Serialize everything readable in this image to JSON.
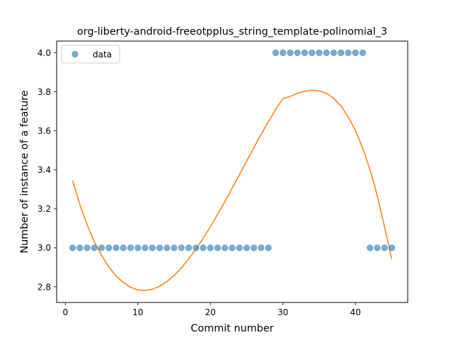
{
  "chart_data": {
    "type": "scatter",
    "title": "org-liberty-android-freeotpplus_string_template-polinomial_3",
    "xlabel": "Commit number",
    "ylabel": "Number of instance of a feature",
    "xlim": [
      -1.2,
      47.2
    ],
    "ylim": [
      2.72,
      4.06
    ],
    "xticks": [
      0,
      10,
      20,
      30,
      40
    ],
    "yticks": [
      2.8,
      3.0,
      3.2,
      3.4,
      3.6,
      3.8,
      4.0
    ],
    "grid": false,
    "legend_position": "top-left",
    "series": [
      {
        "name": "data",
        "kind": "scatter",
        "color": "#1f77b4",
        "x": [
          1,
          2,
          3,
          4,
          5,
          6,
          7,
          8,
          9,
          10,
          11,
          12,
          13,
          14,
          15,
          16,
          17,
          18,
          19,
          20,
          21,
          22,
          23,
          24,
          25,
          26,
          27,
          28,
          29,
          30,
          31,
          32,
          33,
          34,
          35,
          36,
          37,
          38,
          39,
          40,
          41,
          42,
          43,
          44,
          45
        ],
        "y": [
          3,
          3,
          3,
          3,
          3,
          3,
          3,
          3,
          3,
          3,
          3,
          3,
          3,
          3,
          3,
          3,
          3,
          3,
          3,
          3,
          3,
          3,
          3,
          3,
          3,
          3,
          3,
          3,
          4,
          4,
          4,
          4,
          4,
          4,
          4,
          4,
          4,
          4,
          4,
          4,
          4,
          3,
          3,
          3,
          3
        ]
      },
      {
        "kind": "line",
        "color": "#ff7f0e",
        "x": [
          1,
          2,
          3,
          4,
          5,
          6,
          7,
          8,
          9,
          10,
          11,
          12,
          13,
          14,
          15,
          16,
          17,
          18,
          19,
          20,
          21,
          22,
          23,
          24,
          25,
          26,
          27,
          28,
          29,
          30,
          31,
          32,
          33,
          34,
          35,
          36,
          37,
          38,
          39,
          40,
          41,
          42,
          43,
          44,
          45
        ],
        "y": [
          3.345,
          3.222,
          3.118,
          3.031,
          2.961,
          2.902,
          2.856,
          2.822,
          2.798,
          2.784,
          2.781,
          2.788,
          2.803,
          2.827,
          2.859,
          2.897,
          2.943,
          2.993,
          3.049,
          3.108,
          3.172,
          3.238,
          3.306,
          3.375,
          3.445,
          3.514,
          3.582,
          3.647,
          3.71,
          3.765,
          3.776,
          3.793,
          3.803,
          3.808,
          3.805,
          3.792,
          3.767,
          3.727,
          3.672,
          3.601,
          3.511,
          3.401,
          3.268,
          3.109,
          2.942
        ]
      }
    ]
  }
}
